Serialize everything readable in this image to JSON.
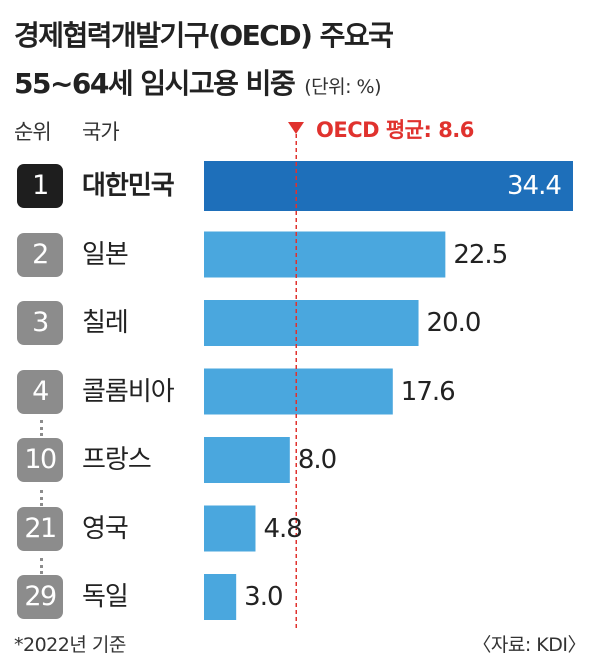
{
  "title_line1": "경제협력개발기구(OECD) 주요국",
  "title_line2": "55~64세 임시고용 비중",
  "unit": "(단위: %)",
  "headers": {
    "rank": "순위",
    "country": "국가"
  },
  "average": {
    "label": "OECD 평균: 8.6",
    "value": 8.6,
    "color": "#e0322e"
  },
  "footnote": "*2022년 기준",
  "source": "〈자료: KDI〉",
  "colors": {
    "highlight": "#1e6fba",
    "bar": "#4aa7de",
    "rank_highlight": "#1e1e1e",
    "rank": "#8c8c8c"
  },
  "chart_data": {
    "type": "bar",
    "orientation": "horizontal",
    "title": "경제협력개발기구(OECD) 주요국 55~64세 임시고용 비중",
    "unit": "%",
    "reference_line": {
      "label": "OECD 평균",
      "value": 8.6
    },
    "rows": [
      {
        "rank": "1",
        "country": "대한민국",
        "value": 34.4,
        "display": "34.4",
        "highlight": true
      },
      {
        "rank": "2",
        "country": "일본",
        "value": 22.5,
        "display": "22.5",
        "highlight": false
      },
      {
        "rank": "3",
        "country": "칠레",
        "value": 20.0,
        "display": "20.0",
        "highlight": false
      },
      {
        "rank": "4",
        "country": "콜롬비아",
        "value": 17.6,
        "display": "17.6",
        "highlight": false
      },
      {
        "rank": "10",
        "country": "프랑스",
        "value": 8.0,
        "display": "8.0",
        "highlight": false
      },
      {
        "rank": "21",
        "country": "영국",
        "value": 4.8,
        "display": "4.8",
        "highlight": false
      },
      {
        "rank": "29",
        "country": "독일",
        "value": 3.0,
        "display": "3.0",
        "highlight": false
      }
    ]
  }
}
